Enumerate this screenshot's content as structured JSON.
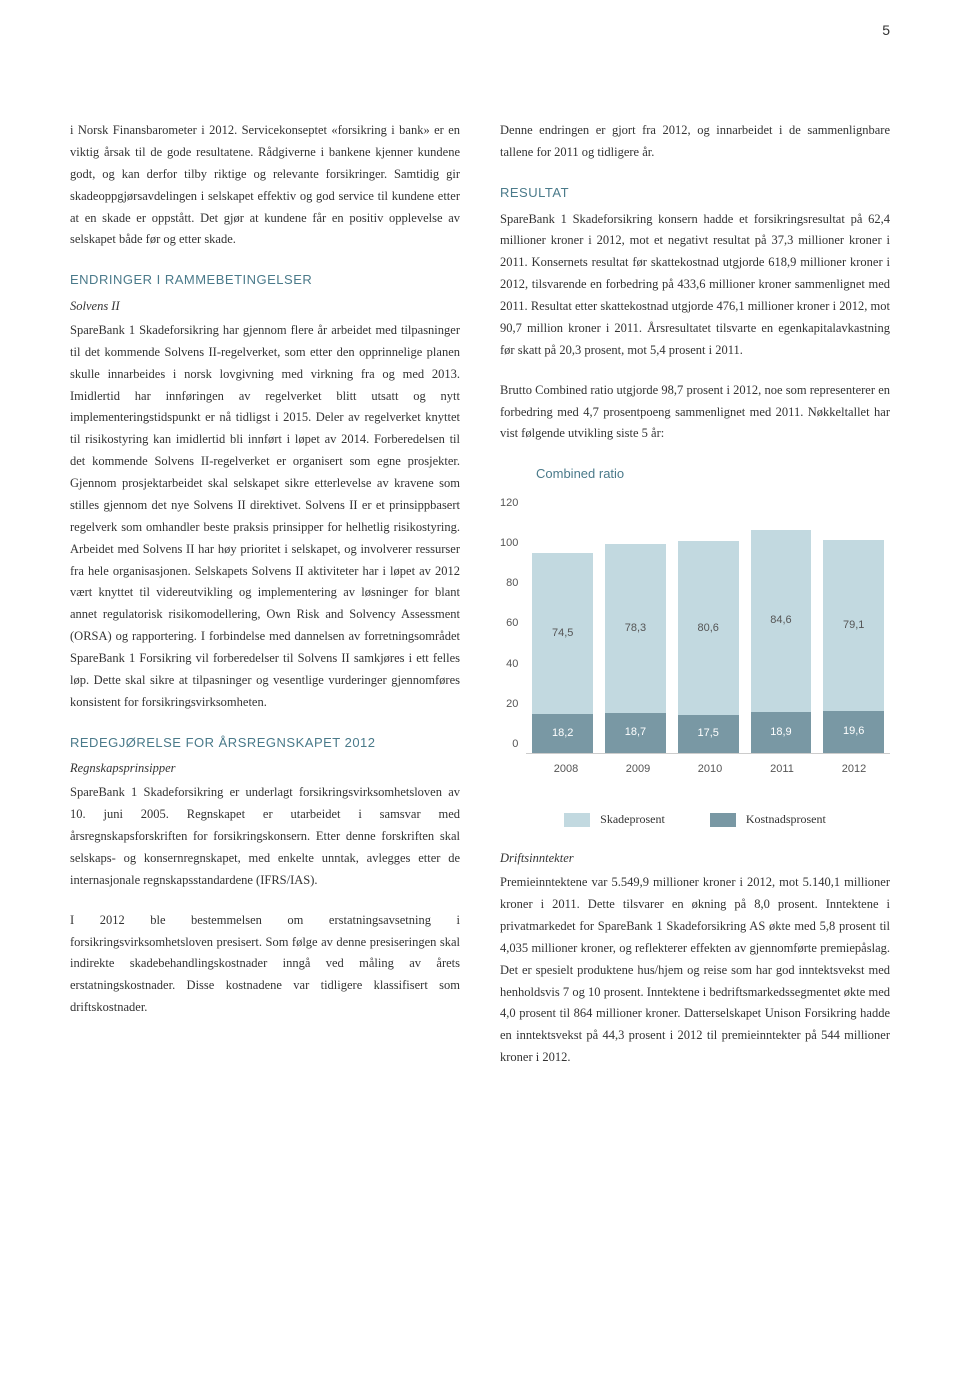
{
  "page_number": "5",
  "left_column": {
    "para1": "i Norsk Finansbarometer i 2012. Servicekonseptet «forsikring i bank» er en viktig årsak til de gode resultatene. Rådgiverne i bankene kjenner kundene godt, og kan derfor tilby riktige og relevante forsikringer. Samtidig gir skadeoppgjørsavdelingen i selskapet effektiv og god service til kundene etter at en skade er oppstått. Det gjør at kundene får en positiv opplevelse av selskapet både før og etter skade.",
    "heading1": "ENDRINGER I RAMMEBETINGELSER",
    "sub1": "Solvens II",
    "para2": "SpareBank 1 Skadeforsikring har gjennom flere år arbeidet med tilpasninger til det kommende Solvens II-regelverket, som etter den opprinnelige planen skulle innarbeides i norsk lovgivning med virkning fra og med 2013. Imidlertid har innføringen av regelverket blitt utsatt og nytt implementeringstidspunkt er nå tidligst i 2015. Deler av regelverket knyttet til risikostyring kan imidlertid bli innført i løpet av 2014. Forberedelsen til det kommende Solvens II-regelverket er organisert som egne prosjekter. Gjennom prosjektarbeidet skal selskapet sikre etterlevelse av kravene som stilles gjennom det nye Solvens II direktivet. Solvens II er et prinsippbasert regelverk som omhandler beste praksis prinsipper for helhetlig risikostyring. Arbeidet med Solvens II har høy prioritet i selskapet, og involverer ressurser fra hele organisasjonen. Selskapets Solvens II aktiviteter har i løpet av 2012 vært knyttet til videreutvikling og implementering av løsninger for blant annet regulatorisk risikomodellering, Own Risk and Solvency Assessment (ORSA) og rapportering. I forbindelse med dannelsen av forretningsområdet SpareBank 1 Forsikring vil forberedelser til Solvens II samkjøres i ett felles løp. Dette skal sikre at tilpasninger og vesentlige vurderinger gjennomføres konsistent for forsikringsvirksomheten.",
    "heading2": "REDEGJØRELSE FOR ÅRSREGNSKAPET 2012",
    "sub2": "Regnskapsprinsipper",
    "para3": "SpareBank 1 Skadeforsikring er underlagt forsikringsvirksomhetsloven av 10. juni 2005. Regnskapet er utarbeidet i samsvar med årsregnskapsforskriften for forsikringskonsern. Etter denne forskriften skal selskaps- og konsernregnskapet, med enkelte unntak, avlegges etter de internasjonale regnskapsstandardene (IFRS/IAS).",
    "para4": "I 2012 ble bestemmelsen om erstatningsavsetning i forsikringsvirksomhetsloven presisert. Som følge av denne presiseringen skal indirekte skadebehandlingskostnader inngå ved måling av årets erstatningskostnader. Disse kostnadene var tidligere klassifisert som driftskostnader."
  },
  "right_column": {
    "para1": "Denne endringen er gjort fra 2012, og innarbeidet i de sammenlignbare tallene for 2011 og tidligere år.",
    "heading1": "RESULTAT",
    "para2": "SpareBank 1 Skadeforsikring konsern hadde et forsikringsresultat på 62,4 millioner kroner i 2012, mot et negativt resultat på 37,3 millioner kroner i 2011. Konsernets resultat før skattekostnad utgjorde 618,9 millioner kroner i 2012, tilsvarende en forbedring på 433,6 millioner kroner sammenlignet med 2011. Resultat etter skattekostnad utgjorde 476,1 millioner kroner i 2012, mot 90,7 million kroner i 2011. Årsresultatet tilsvarte en egenkapitalavkastning før skatt på 20,3 prosent, mot 5,4 prosent i 2011.",
    "para3": "Brutto Combined ratio utgjorde 98,7 prosent i 2012, noe som representerer en forbedring med 4,7 prosentpoeng sammenlignet med 2011. Nøkkeltallet har vist følgende utvikling siste 5 år:",
    "sub2": "Driftsinntekter",
    "para4": "Premieinntektene var 5.549,9 millioner kroner i 2012, mot 5.140,1 millioner kroner i 2011. Dette tilsvarer en økning på 8,0 prosent. Inntektene i privatmarkedet for SpareBank 1 Skadeforsikring AS økte med 5,8 prosent til 4,035 millioner kroner, og reflekterer effekten av gjennomførte premiepåslag. Det er spesielt produktene hus/hjem og reise som har god inntektsvekst med henholdsvis 7 og 10 prosent. Inntektene i bedriftsmarkedssegmentet økte med 4,0 prosent til 864 millioner kroner. Datterselskapet Unison Forsikring hadde en inntektsvekst på 44,3 prosent i 2012 til premieinntekter på 544 millioner kroner i 2012."
  },
  "chart": {
    "title": "Combined ratio",
    "type": "stacked-bar",
    "y_ticks": [
      "120",
      "100",
      "80",
      "60",
      "40",
      "20",
      "0"
    ],
    "ymax": 120,
    "categories": [
      "2008",
      "2009",
      "2010",
      "2011",
      "2012"
    ],
    "series": [
      {
        "name": "Skadeprosent",
        "color": "#c2d9e0",
        "values": [
          74.5,
          78.3,
          80.6,
          84.6,
          79.1
        ]
      },
      {
        "name": "Kostnadsprosent",
        "color": "#7998a4",
        "values": [
          18.2,
          18.7,
          17.5,
          18.9,
          19.6
        ]
      }
    ],
    "top_labels": [
      "74,5",
      "78,3",
      "80,6",
      "84,6",
      "79,1"
    ],
    "bottom_labels": [
      "18,2",
      "18,7",
      "17,5",
      "18,9",
      "19,6"
    ],
    "legend": [
      {
        "label": "Skadeprosent",
        "color": "#c2d9e0"
      },
      {
        "label": "Kostnadsprosent",
        "color": "#7998a4"
      }
    ]
  }
}
